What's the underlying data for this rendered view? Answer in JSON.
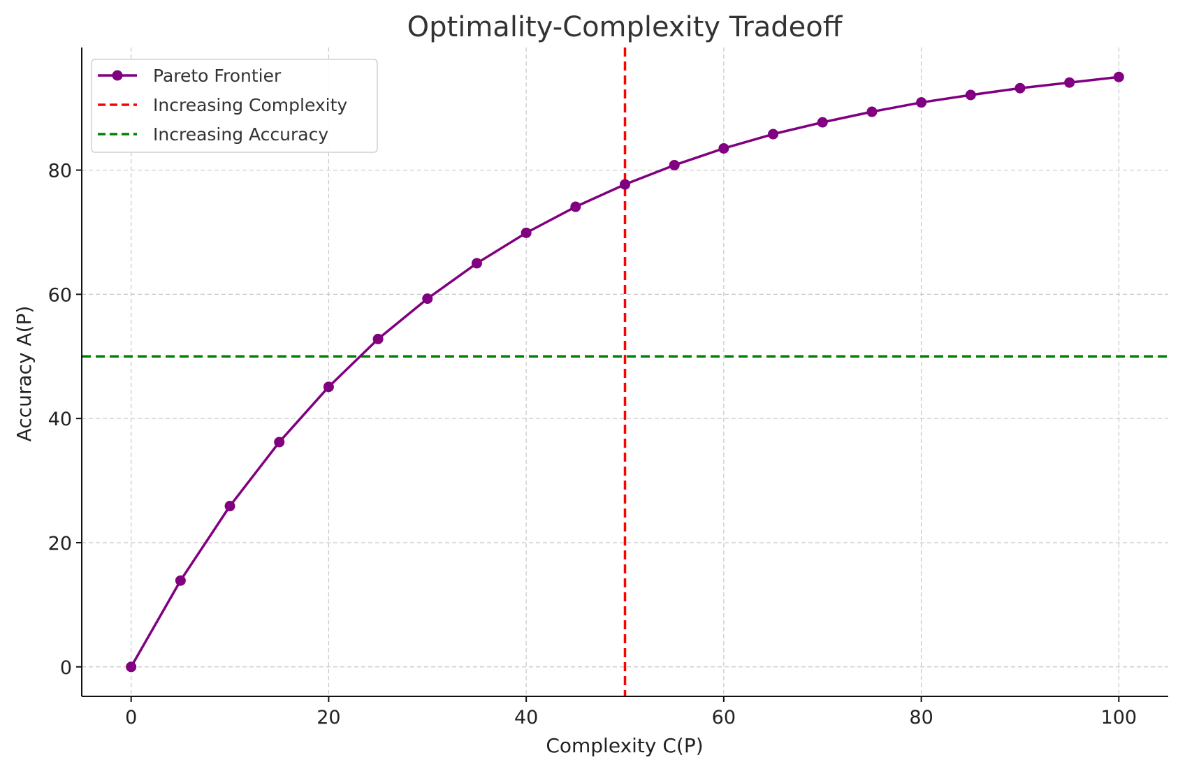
{
  "chart_data": {
    "type": "line",
    "title": "Optimality-Complexity Tradeoff",
    "xlabel": "Complexity C(P)",
    "ylabel": "Accuracy A(P)",
    "xlim": [
      -5,
      105
    ],
    "ylim": [
      -4.75,
      99.75
    ],
    "xticks": [
      0,
      20,
      40,
      60,
      80,
      100
    ],
    "yticks": [
      0,
      20,
      40,
      60,
      80
    ],
    "grid": true,
    "legend_position": "top-left",
    "series": [
      {
        "name": "Pareto Frontier",
        "color": "#800080",
        "marker": "circle",
        "x": [
          0,
          5,
          10,
          15,
          20,
          25,
          30,
          35,
          40,
          45,
          50,
          55,
          60,
          65,
          70,
          75,
          80,
          85,
          90,
          95,
          100
        ],
        "y": [
          0,
          13.9,
          25.9,
          36.2,
          45.1,
          52.8,
          59.3,
          65.0,
          69.9,
          74.1,
          77.7,
          80.8,
          83.5,
          85.8,
          87.7,
          89.4,
          90.9,
          92.1,
          93.2,
          94.1,
          95.0
        ]
      }
    ],
    "reference_lines": [
      {
        "name": "Increasing Complexity",
        "orientation": "vertical",
        "value": 50,
        "color": "#ff0000",
        "style": "dashed"
      },
      {
        "name": "Increasing Accuracy",
        "orientation": "horizontal",
        "value": 50,
        "color": "#008000",
        "style": "dashed"
      }
    ]
  }
}
